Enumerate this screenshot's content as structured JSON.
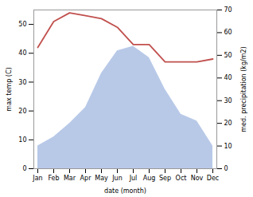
{
  "chart_data": {
    "type": "line",
    "xlabel": "date (month)",
    "ylabel": "max temp (C)",
    "y2label": "med. precipitation (kg/m2)",
    "categories": [
      "Jan",
      "Feb",
      "Mar",
      "Apr",
      "May",
      "Jun",
      "Jul",
      "Aug",
      "Sep",
      "Oct",
      "Nov",
      "Dec"
    ],
    "series": [
      {
        "type": "area",
        "axis": "y2",
        "color": "#b8c9e8",
        "values": [
          10,
          14,
          20,
          27,
          42,
          52,
          54,
          49,
          35,
          24,
          21,
          10
        ]
      },
      {
        "type": "line",
        "color": "#c0504d",
        "values": [
          42,
          51,
          54,
          53,
          52,
          49,
          43,
          43,
          37,
          37,
          37,
          38
        ]
      }
    ],
    "ylim": [
      0,
      55
    ],
    "yticks": [
      0,
      10,
      20,
      30,
      40,
      50
    ],
    "y2lim": [
      0,
      70
    ],
    "y2ticks": [
      0,
      10,
      20,
      30,
      40,
      50,
      60,
      70
    ]
  }
}
